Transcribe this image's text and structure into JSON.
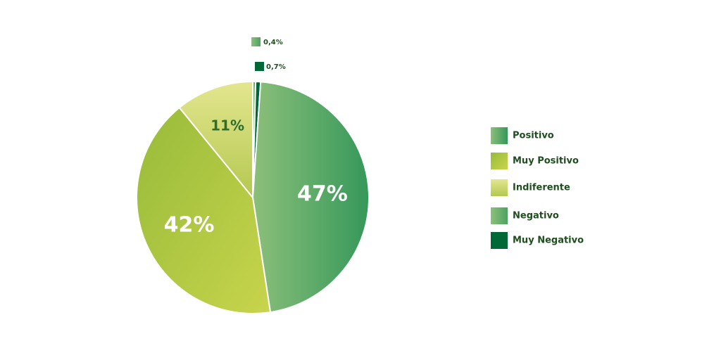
{
  "chart_data": {
    "type": "pie",
    "categories": [
      "Positivo",
      "Muy Positivo",
      "Indiferente",
      "Negativo",
      "Muy Negativo"
    ],
    "values": [
      47,
      42,
      11,
      0.4,
      0.7
    ],
    "value_labels": [
      "47%",
      "42%",
      "11%",
      "0,4%",
      "0,7%"
    ],
    "colors": [
      "#3f9c5a",
      "#a9c23c",
      "#dde38e",
      "#6bb074",
      "#006837"
    ],
    "legend": "right"
  }
}
